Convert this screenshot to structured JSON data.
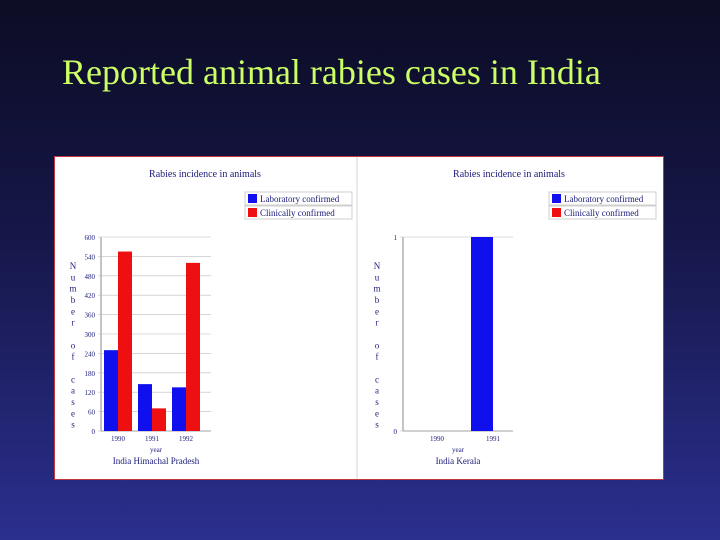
{
  "slide": {
    "title": "Reported animal rabies cases in India"
  },
  "colors": {
    "lab": "#1010ee",
    "clinical": "#ee1010",
    "text": "#1a1a7a",
    "title": "#ccff66"
  },
  "chart_data": [
    {
      "type": "bar",
      "title": "Rabies incidence in animals",
      "categories": [
        "1990",
        "1991",
        "1992"
      ],
      "xlabel": "year",
      "ylabel": "Number of cases",
      "subtitle": "India Himachal Pradesh",
      "ylim": [
        0,
        600
      ],
      "yticks": [
        0,
        60,
        120,
        180,
        240,
        300,
        360,
        420,
        480,
        540,
        600
      ],
      "grid": false,
      "legend": "top-right",
      "series": [
        {
          "name": "Laboratory confirmed",
          "values": [
            250,
            145,
            135
          ]
        },
        {
          "name": "Clinically confirmed",
          "values": [
            555,
            70,
            520
          ]
        }
      ]
    },
    {
      "type": "bar",
      "title": "Rabies incidence in animals",
      "categories": [
        "1990",
        "1991"
      ],
      "xlabel": "year",
      "ylabel": "Number of cases",
      "subtitle": "India Kerala",
      "ylim": [
        0,
        1
      ],
      "yticks": [
        0,
        1
      ],
      "grid": false,
      "legend": "top-right",
      "series": [
        {
          "name": "Laboratory confirmed",
          "values": [
            0,
            1
          ]
        },
        {
          "name": "Clinically confirmed",
          "values": [
            0,
            0
          ]
        }
      ]
    }
  ]
}
